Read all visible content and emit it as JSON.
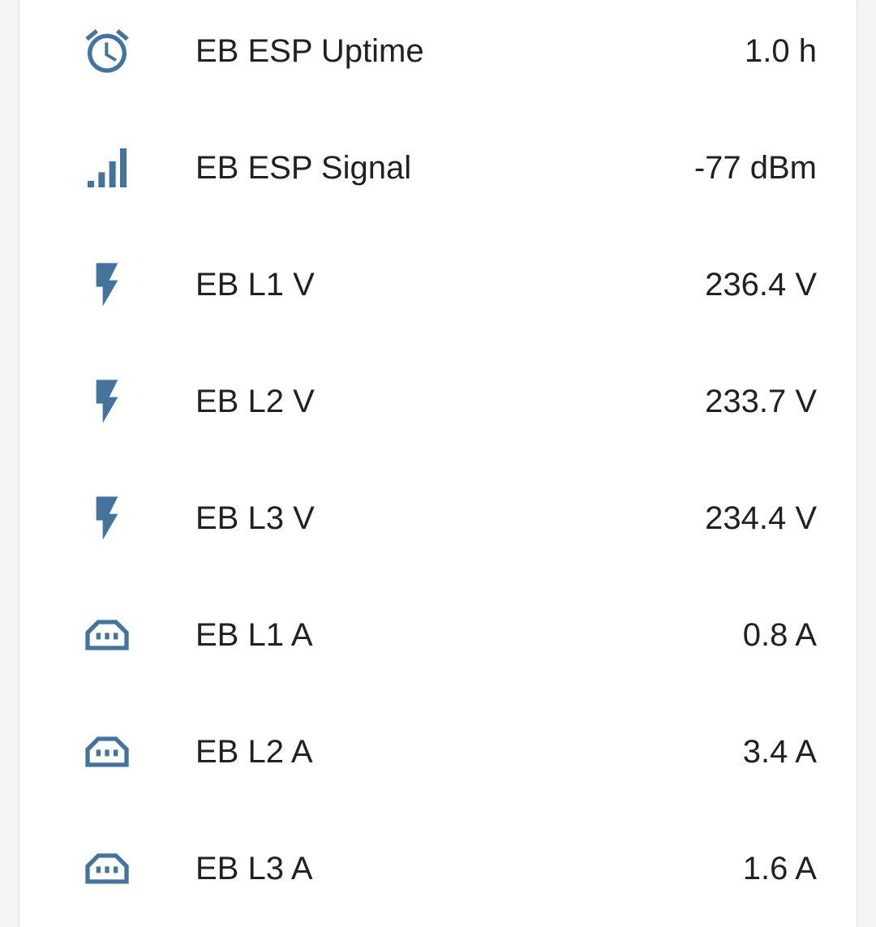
{
  "colors": {
    "icon": "#44739e",
    "text": "#212121",
    "card": "#ffffff",
    "background": "#f5f5f5"
  },
  "entities": [
    {
      "icon": "timer-icon",
      "name": "EB ESP Uptime",
      "state": "1.0 h"
    },
    {
      "icon": "signal-icon",
      "name": "EB ESP Signal",
      "state": "-77 dBm"
    },
    {
      "icon": "flash-icon",
      "name": "EB L1 V",
      "state": "236.4 V"
    },
    {
      "icon": "flash-icon",
      "name": "EB L2 V",
      "state": "233.7 V"
    },
    {
      "icon": "flash-icon",
      "name": "EB L3 V",
      "state": "234.4 V"
    },
    {
      "icon": "power-socket-icon",
      "name": "EB L1 A",
      "state": "0.8 A"
    },
    {
      "icon": "power-socket-icon",
      "name": "EB L2 A",
      "state": "3.4 A"
    },
    {
      "icon": "power-socket-icon",
      "name": "EB L3 A",
      "state": "1.6 A"
    }
  ]
}
